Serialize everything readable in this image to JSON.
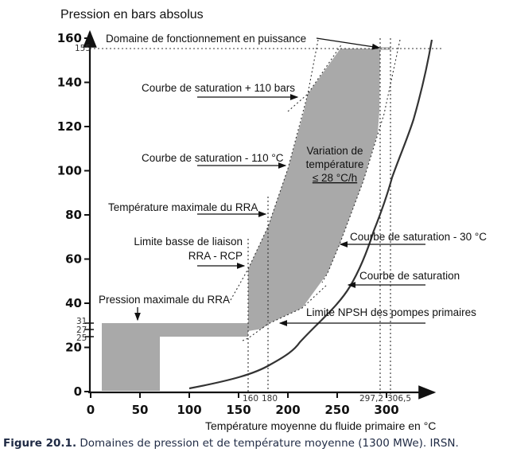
{
  "chart_data": {
    "type": "area",
    "ylabel": "Pression en bars absolus",
    "xlabel": "Température moyenne du fluide primaire en °C",
    "xlim": [
      0,
      340
    ],
    "ylim": [
      0,
      160
    ],
    "x_ticks": [
      "0",
      "50",
      "100",
      "150",
      "200",
      "250",
      "300"
    ],
    "y_ticks": [
      "0",
      "20",
      "40",
      "60",
      "80",
      "100",
      "120",
      "140",
      "160"
    ],
    "x_marks": [
      "160",
      "180",
      "297,2",
      "306,5"
    ],
    "y_marks": [
      "155",
      "31",
      "27",
      "25"
    ],
    "annotations": {
      "domaine": "Domaine de fonctionnement en puissance",
      "sat_plus_110": "Courbe de saturation + 110 bars",
      "sat_minus_110": "Courbe de saturation - 110 °C",
      "temp_max_rra": "Température maximale du RRA",
      "limite_basse_1": "Limite basse de liaison",
      "limite_basse_2": "RRA - RCP",
      "pression_max_rra": "Pression maximale du RRA",
      "variation_1": "Variation de",
      "variation_2": "température",
      "variation_3": "≤ 28 °C/h",
      "sat_minus_30": "Courbe de saturation - 30 °C",
      "sat": "Courbe de saturation",
      "npsh": "Limite NPSH des pompes primaires"
    },
    "colors": {
      "domain_fill": "#a9a9a9",
      "curve": "#333333",
      "power_domain": "#c8c8c8"
    }
  },
  "caption": {
    "label": "Figure 20.1.",
    "text": "Domaines de pression et de température moyenne (1300 MWe). IRSN."
  }
}
